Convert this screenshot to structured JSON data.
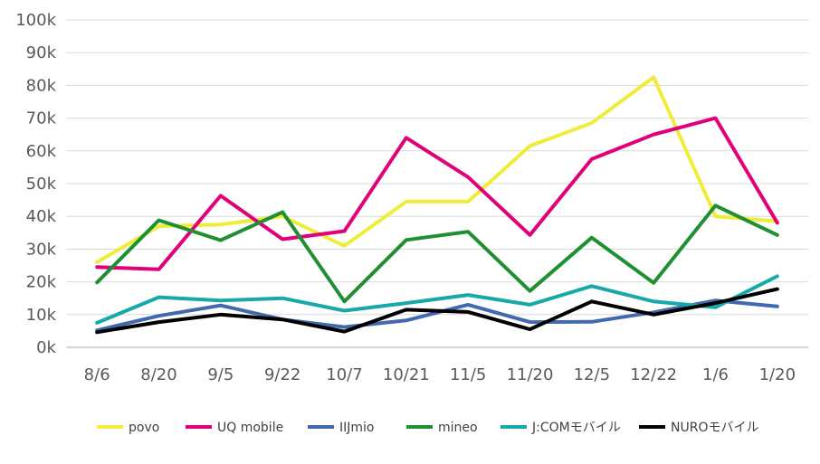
{
  "chart_data": {
    "type": "line",
    "title": "",
    "xlabel": "",
    "ylabel": "",
    "categories": [
      "8/6",
      "8/20",
      "9/5",
      "9/22",
      "10/7",
      "10/21",
      "11/5",
      "11/20",
      "12/5",
      "12/22",
      "1/6",
      "1/20"
    ],
    "ylim": [
      0,
      100000
    ],
    "yticks": [
      0,
      10000,
      20000,
      30000,
      40000,
      50000,
      60000,
      70000,
      80000,
      90000,
      100000
    ],
    "ytick_labels": [
      "0k",
      "10k",
      "20k",
      "30k",
      "40k",
      "50k",
      "60k",
      "70k",
      "80k",
      "90k",
      "100k"
    ],
    "grid": true,
    "legend_position": "bottom",
    "series": [
      {
        "name": "povo",
        "color": "#F0EC3A",
        "values": [
          26000,
          37000,
          37500,
          40000,
          31000,
          44500,
          44500,
          61500,
          68500,
          82500,
          40000,
          38500
        ]
      },
      {
        "name": "UQ mobile",
        "color": "#E0007A",
        "values": [
          24500,
          23800,
          46300,
          33000,
          35500,
          64000,
          52000,
          34300,
          57500,
          65000,
          70000,
          38000
        ]
      },
      {
        "name": "IIJmio",
        "color": "#4169B0",
        "values": [
          5200,
          9600,
          12800,
          8500,
          6200,
          8200,
          13000,
          7700,
          7800,
          10700,
          14300,
          12500
        ]
      },
      {
        "name": "mineo",
        "color": "#1E9032",
        "values": [
          19800,
          38800,
          32700,
          41300,
          14000,
          32800,
          35300,
          17200,
          33500,
          19700,
          43300,
          34300
        ]
      },
      {
        "name": "J:COMモバイル",
        "color": "#17A9AA",
        "values": [
          7500,
          15300,
          14300,
          15000,
          11200,
          13500,
          16000,
          13000,
          18700,
          14000,
          12200,
          21700
        ]
      },
      {
        "name": "NUROモバイル",
        "color": "#000000",
        "values": [
          4600,
          7700,
          10000,
          8500,
          4800,
          11500,
          10800,
          5500,
          14000,
          10000,
          13500,
          17800
        ]
      }
    ]
  }
}
